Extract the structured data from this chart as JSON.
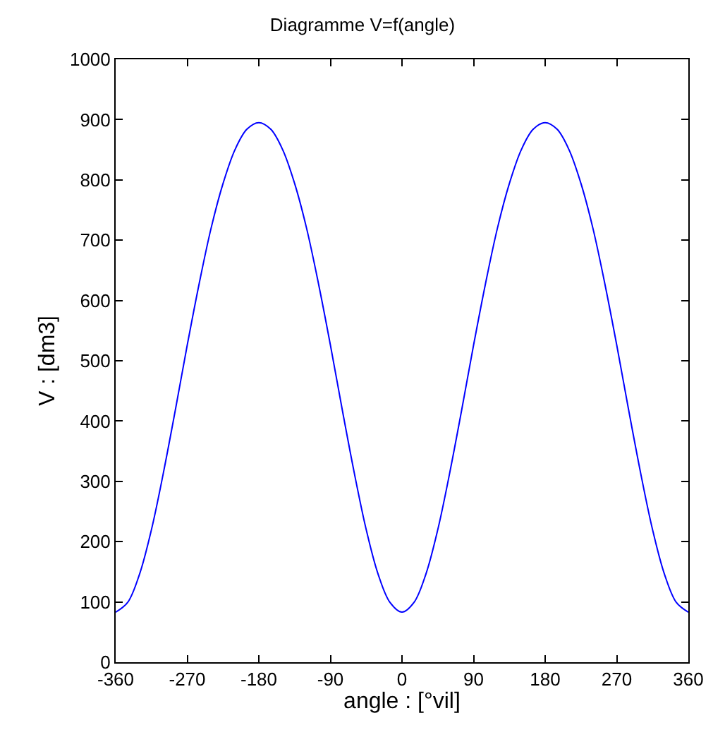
{
  "chart_data": {
    "type": "line",
    "title": "Diagramme V=f(angle)",
    "xlabel": "angle : [°vil]",
    "ylabel": "V : [dm3]",
    "x": [
      -360,
      -345,
      -330,
      -315,
      -300,
      -285,
      -270,
      -255,
      -240,
      -225,
      -210,
      -195,
      -180,
      -165,
      -150,
      -135,
      -120,
      -105,
      -90,
      -75,
      -60,
      -45,
      -30,
      -15,
      0,
      15,
      30,
      45,
      60,
      75,
      90,
      105,
      120,
      135,
      150,
      165,
      180,
      195,
      210,
      225,
      240,
      255,
      270,
      285,
      300,
      315,
      330,
      345,
      360
    ],
    "series": [
      {
        "color": "#0000ff",
        "values": [
          83,
          99,
          146,
          220,
          314,
          418,
          526,
          628,
          720,
          794,
          850,
          884,
          895,
          884,
          850,
          794,
          720,
          628,
          526,
          418,
          314,
          220,
          146,
          99,
          83,
          99,
          146,
          220,
          314,
          418,
          526,
          628,
          720,
          794,
          850,
          884,
          895,
          884,
          850,
          794,
          720,
          628,
          526,
          418,
          314,
          220,
          146,
          99,
          83
        ]
      }
    ],
    "xlim": [
      -360,
      360
    ],
    "xticks": [
      -360,
      -270,
      -180,
      -90,
      0,
      90,
      180,
      270,
      360
    ],
    "ylim": [
      0,
      1000
    ],
    "yticks": [
      0,
      100,
      200,
      300,
      400,
      500,
      600,
      700,
      800,
      900,
      1000
    ],
    "grid": false,
    "legend": false,
    "marker": "none",
    "line_style": "solid"
  }
}
